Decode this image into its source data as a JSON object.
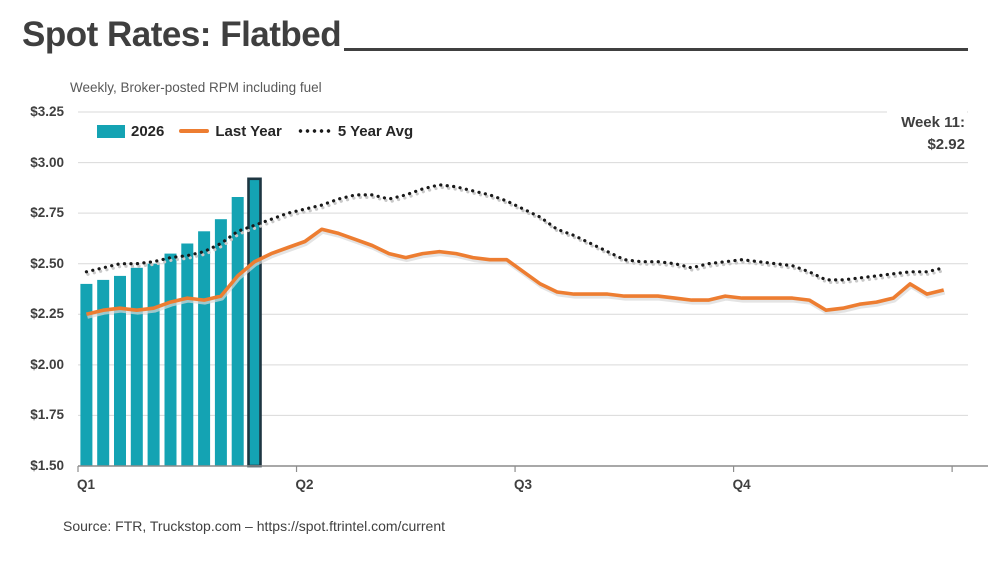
{
  "header": {
    "title": "Spot Rates: Flatbed",
    "subtitle": "Weekly, Broker-posted RPM including fuel"
  },
  "legend": {
    "items": [
      {
        "label": "2026",
        "swatch": "bar",
        "color": "#14A3B3"
      },
      {
        "label": "Last Year",
        "swatch": "line",
        "color": "#ED7D31"
      },
      {
        "label": "5 Year Avg",
        "swatch": "dots",
        "color": "#1A1A1A"
      }
    ]
  },
  "callout": {
    "line1": "Week 11:",
    "line2": "$2.92"
  },
  "footer": {
    "source": "Source: FTR, Truckstop.com – https://spot.ftrintel.com/current"
  },
  "chart_data": {
    "type": "combo-bar-line",
    "title": "Spot Rates: Flatbed",
    "subtitle": "Weekly, Broker-posted RPM including fuel",
    "grid": "horizontal",
    "legend_position": "top-left",
    "x_axis": {
      "unit": "week",
      "total_weeks": 52,
      "weeks_per_quarter": 13,
      "tick_labels": [
        "Q1",
        "Q2",
        "Q3",
        "Q4"
      ]
    },
    "y_axis": {
      "min": 1.5,
      "max": 3.25,
      "tick_step": 0.25,
      "tick_values": [
        3.25,
        3.0,
        2.75,
        2.5,
        2.25,
        2.0,
        1.75,
        1.5
      ],
      "tick_labels": [
        "$3.25",
        "$3.00",
        "$2.75",
        "$2.50",
        "$2.25",
        "$2.00",
        "$1.75",
        "$1.50"
      ]
    },
    "series": [
      {
        "name": "2026",
        "type": "bar",
        "color": "#14A3B3",
        "start_week": 1,
        "highlight_last": true,
        "highlight_border_color": "#1E3642",
        "values": [
          2.4,
          2.42,
          2.44,
          2.48,
          2.5,
          2.55,
          2.6,
          2.66,
          2.72,
          2.83,
          2.92
        ]
      },
      {
        "name": "Last Year",
        "type": "line",
        "color": "#ED7D31",
        "values": [
          2.25,
          2.27,
          2.28,
          2.27,
          2.28,
          2.31,
          2.33,
          2.32,
          2.34,
          2.44,
          2.51,
          2.55,
          2.58,
          2.61,
          2.67,
          2.65,
          2.62,
          2.59,
          2.55,
          2.53,
          2.55,
          2.56,
          2.55,
          2.53,
          2.52,
          2.52,
          2.46,
          2.4,
          2.36,
          2.35,
          2.35,
          2.35,
          2.34,
          2.34,
          2.34,
          2.33,
          2.32,
          2.32,
          2.34,
          2.33,
          2.33,
          2.33,
          2.33,
          2.32,
          2.27,
          2.28,
          2.3,
          2.31,
          2.33,
          2.4,
          2.35,
          2.37
        ]
      },
      {
        "name": "5 Year Avg",
        "type": "dotted_line",
        "color": "#1A1A1A",
        "values": [
          2.46,
          2.48,
          2.5,
          2.5,
          2.51,
          2.53,
          2.54,
          2.56,
          2.6,
          2.66,
          2.69,
          2.72,
          2.75,
          2.77,
          2.79,
          2.82,
          2.84,
          2.84,
          2.82,
          2.84,
          2.87,
          2.89,
          2.88,
          2.86,
          2.84,
          2.81,
          2.77,
          2.73,
          2.67,
          2.64,
          2.6,
          2.56,
          2.52,
          2.51,
          2.51,
          2.5,
          2.48,
          2.5,
          2.51,
          2.52,
          2.51,
          2.5,
          2.49,
          2.46,
          2.42,
          2.42,
          2.43,
          2.44,
          2.45,
          2.46,
          2.46,
          2.48
        ]
      }
    ],
    "callout": {
      "label": "Week 11:",
      "value": "$2.92",
      "week": 11
    },
    "source": "Source: FTR, Truckstop.com – https://spot.ftrintel.com/current"
  }
}
